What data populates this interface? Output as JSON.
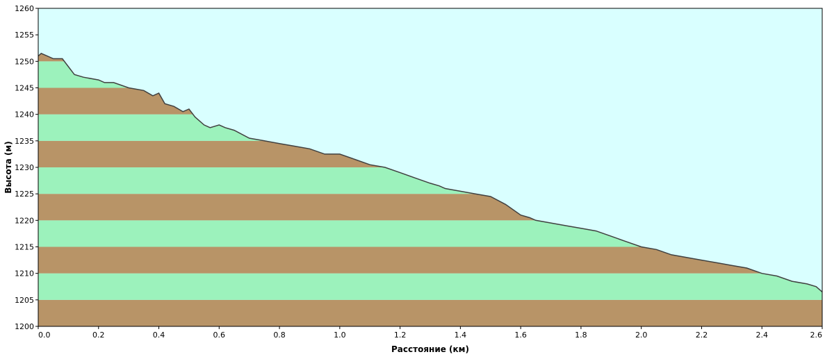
{
  "chart_data": {
    "type": "area",
    "xlabel": "Расстояние  (км)",
    "ylabel": "Высота (м)",
    "xlim": [
      0,
      2.6
    ],
    "ylim": [
      1200,
      1260
    ],
    "x_ticks": [
      0.0,
      0.2,
      0.4,
      0.6,
      0.8,
      1.0,
      1.2,
      1.4,
      1.6,
      1.8,
      2.0,
      2.2,
      2.4,
      2.6
    ],
    "x_tick_labels": [
      "0.0",
      "0.2",
      "0.4",
      "0.6",
      "0.8",
      "1.0",
      "1.2",
      "1.4",
      "1.6",
      "1.8",
      "2.0",
      "2.2",
      "2.4",
      "2.6"
    ],
    "y_ticks": [
      1200,
      1205,
      1210,
      1215,
      1220,
      1225,
      1230,
      1235,
      1240,
      1245,
      1250,
      1255,
      1260
    ],
    "y_tick_labels": [
      "1200",
      "1205",
      "1210",
      "1215",
      "1220",
      "1225",
      "1230",
      "1235",
      "1240",
      "1245",
      "1250",
      "1255",
      "1260"
    ],
    "band_step": 5,
    "colors": {
      "sky": "#d9ffff",
      "band_brown": "#b89467",
      "band_green": "#9cf2bc",
      "line": "#404040"
    },
    "series": [
      {
        "x": [
          0.0,
          0.01,
          0.03,
          0.05,
          0.08,
          0.1,
          0.12,
          0.15,
          0.2,
          0.22,
          0.25,
          0.3,
          0.35,
          0.38,
          0.4,
          0.42,
          0.45,
          0.48,
          0.5,
          0.52,
          0.55,
          0.57,
          0.6,
          0.62,
          0.65,
          0.7,
          0.75,
          0.8,
          0.85,
          0.9,
          0.95,
          1.0,
          1.05,
          1.1,
          1.15,
          1.2,
          1.25,
          1.3,
          1.33,
          1.35,
          1.4,
          1.45,
          1.5,
          1.55,
          1.6,
          1.63,
          1.65,
          1.7,
          1.75,
          1.8,
          1.85,
          1.9,
          1.95,
          2.0,
          2.05,
          2.1,
          2.15,
          2.2,
          2.25,
          2.3,
          2.35,
          2.4,
          2.45,
          2.5,
          2.55,
          2.58,
          2.6
        ],
        "y": [
          1251,
          1251.5,
          1251,
          1250.5,
          1250.5,
          1249,
          1247.5,
          1247,
          1246.5,
          1246,
          1246,
          1245,
          1244.5,
          1243.5,
          1244,
          1242,
          1241.5,
          1240.5,
          1241,
          1239.5,
          1238,
          1237.5,
          1238,
          1237.5,
          1237,
          1235.5,
          1235,
          1234.5,
          1234,
          1233.5,
          1232.5,
          1232.5,
          1231.5,
          1230.5,
          1230,
          1229,
          1228,
          1227,
          1226.5,
          1226,
          1225.5,
          1225,
          1224.5,
          1223,
          1221,
          1220.5,
          1220,
          1219.5,
          1219,
          1218.5,
          1218,
          1217,
          1216,
          1215,
          1214.5,
          1213.5,
          1213,
          1212.5,
          1212,
          1211.5,
          1211,
          1210,
          1209.5,
          1208.5,
          1208,
          1207.5,
          1206.5
        ]
      }
    ]
  }
}
